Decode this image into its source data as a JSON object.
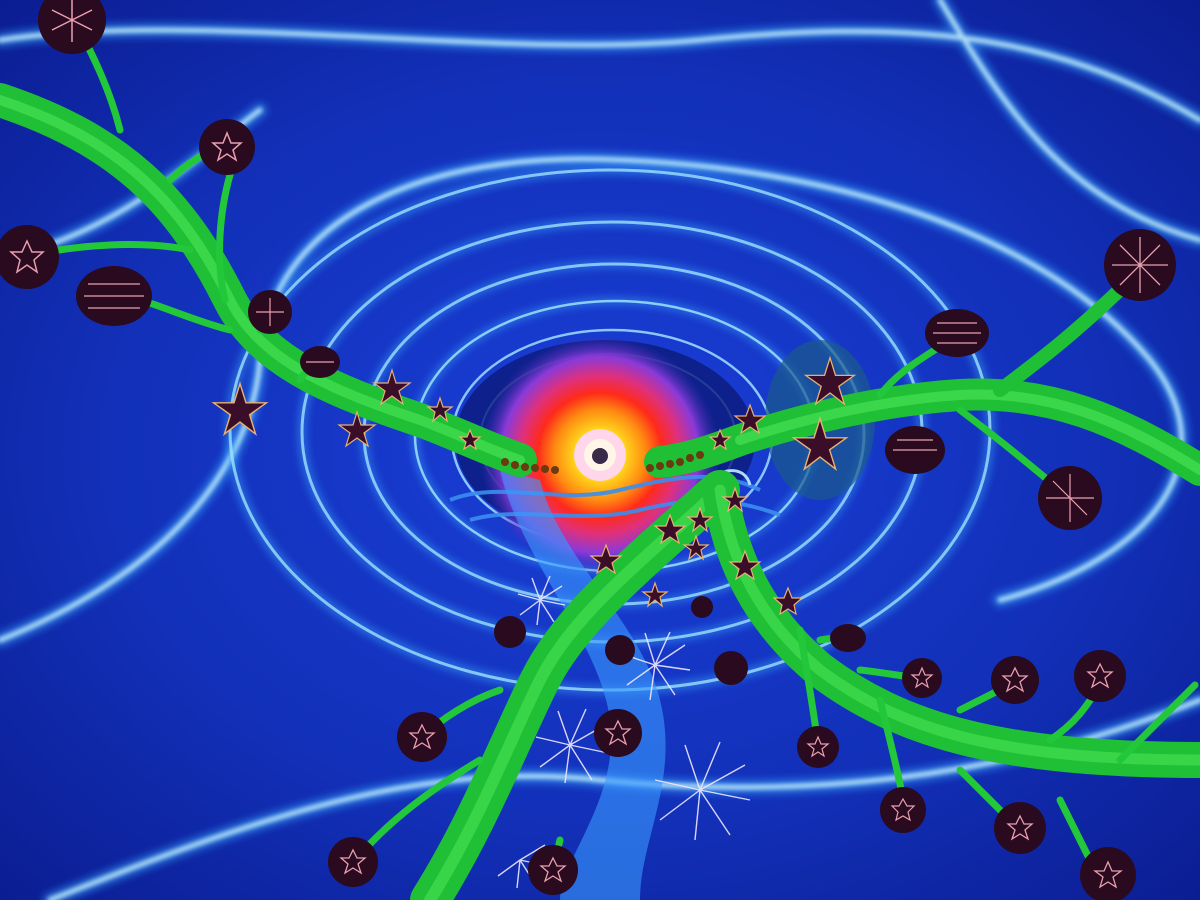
{
  "image": {
    "description_free": true,
    "palette": {
      "background_deep": "#0a1a8c",
      "background_mid": "#1237c8",
      "swirl_light": "#7fd8ff",
      "swirl_bright": "#bff0ff",
      "vine_green": "#22c83a",
      "vine_light": "#4ee85a",
      "bud_dark": "#2a0a1e",
      "bud_stripe": "#e8a0b0",
      "sun_core": "#fff6e0",
      "sun_yellow": "#ffd21a",
      "sun_orange": "#ff8a12",
      "sun_red": "#ff2a1a",
      "sun_magenta": "#e0307a",
      "sun_purple": "#8a3ad8",
      "wave_blue": "#3a8ef0",
      "star_dark": "#3a0e28"
    }
  }
}
